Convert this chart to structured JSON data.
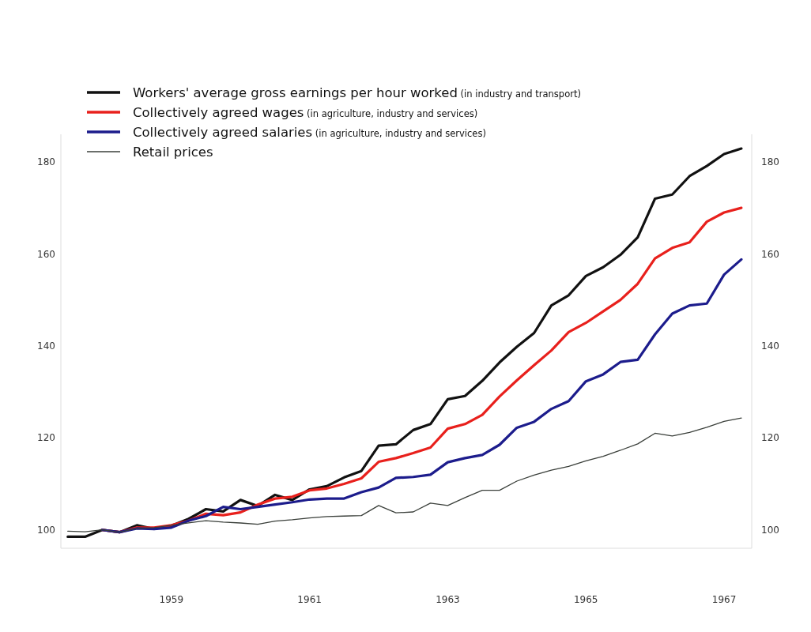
{
  "chart_data": {
    "type": "line",
    "x": [
      1957.5,
      1957.75,
      1958,
      1958.25,
      1958.5,
      1958.75,
      1959,
      1959.25,
      1959.5,
      1959.75,
      1960,
      1960.25,
      1960.5,
      1960.75,
      1961,
      1961.25,
      1961.5,
      1961.75,
      1962,
      1962.25,
      1962.5,
      1962.75,
      1963,
      1963.25,
      1963.5,
      1963.75,
      1964,
      1964.25,
      1964.5,
      1964.75,
      1965,
      1965.25,
      1965.5,
      1965.75,
      1966,
      1966.25,
      1966.5,
      1966.75,
      1967,
      1967.25
    ],
    "series": [
      {
        "name": "Workers' average gross earnings per hour worked (in industry and transport)",
        "color": "#111111",
        "values": [
          98.5,
          98.5,
          100,
          99.5,
          101,
          100.2,
          100.9,
          102.4,
          104.5,
          104,
          106.5,
          105.2,
          107.6,
          106.5,
          108.8,
          109.5,
          111.4,
          112.8,
          118.3,
          118.6,
          121.7,
          123,
          128.4,
          129.1,
          132.4,
          136.4,
          139.8,
          142.8,
          148.8,
          151,
          155.2,
          157.1,
          159.8,
          163.6,
          172,
          172.9,
          176.9,
          179.1,
          181.7,
          182.9
        ]
      },
      {
        "name": "Collectively agreed wages (in agriculture, industry and services)",
        "color": "#e8201c",
        "values": [
          null,
          null,
          100,
          99.5,
          100.5,
          100.5,
          101,
          102,
          103.5,
          103.2,
          103.8,
          105.5,
          106.8,
          107.2,
          108.6,
          109,
          110,
          111.2,
          114.8,
          115.6,
          116.7,
          117.9,
          122,
          123,
          125,
          129,
          132.5,
          135.8,
          139,
          143,
          145,
          147.5,
          150,
          153.5,
          159,
          161.3,
          162.5,
          167,
          169,
          170
        ]
      },
      {
        "name": "Collectively agreed salaries (in agriculture, industry and services)",
        "color": "#1c1c8c",
        "values": [
          null,
          null,
          100,
          99.5,
          100.3,
          100.2,
          100.5,
          102,
          103,
          105,
          104.5,
          105,
          105.5,
          106,
          106.6,
          106.8,
          106.8,
          108.2,
          109.2,
          111.3,
          111.5,
          112,
          114.7,
          115.6,
          116.3,
          118.5,
          122.2,
          123.5,
          126.3,
          128,
          132.3,
          133.8,
          136.5,
          137,
          142.5,
          147,
          148.8,
          149.2,
          155.5,
          158.8
        ]
      },
      {
        "name": "Retail prices",
        "color": "#3a3f3a",
        "values": [
          99.7,
          99.6,
          100,
          99.5,
          100.3,
          100.5,
          101,
          101.5,
          102,
          101.7,
          101.5,
          101.2,
          101.9,
          102.2,
          102.6,
          102.9,
          103,
          103.1,
          105.3,
          103.7,
          103.9,
          105.8,
          105.3,
          107,
          108.6,
          108.6,
          110.6,
          111.9,
          113,
          113.8,
          115,
          116,
          117.3,
          118.7,
          121,
          120.4,
          121.2,
          122.3,
          123.6,
          124.3
        ]
      }
    ],
    "xlim": [
      1957.4,
      1967.4
    ],
    "xticks": [
      1959,
      1961,
      1963,
      1965,
      1967
    ],
    "ylim": [
      96,
      186
    ],
    "yticks": [
      100,
      120,
      140,
      160,
      180
    ],
    "y2lim": [
      96,
      186
    ],
    "y2ticks": [
      100,
      120,
      140,
      160,
      180
    ],
    "legend": "top left",
    "grid": false,
    "marker": "none",
    "line_style": "solid"
  }
}
